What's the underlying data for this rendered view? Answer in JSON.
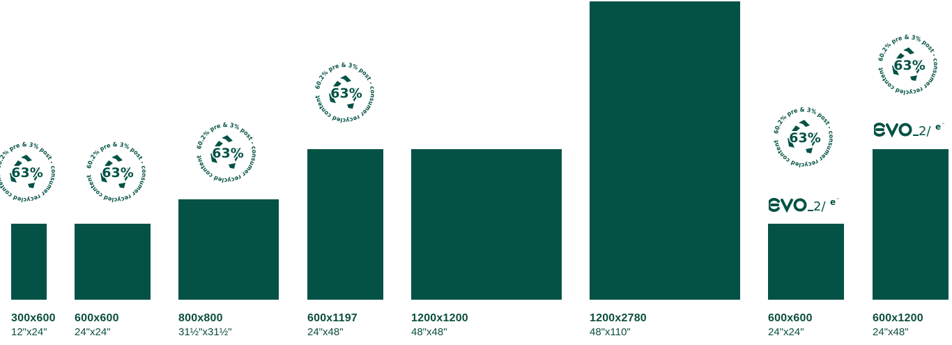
{
  "colors": {
    "tile": "#035245",
    "text": "#0b4d3f"
  },
  "badge": {
    "percent": "63%",
    "arc_text": "60.2% pre & 3% post - consumer recycled content",
    "icon": "recycle-icon"
  },
  "logo": {
    "name": "evo-2-e-logo",
    "text": "evo_2/e"
  },
  "tiles": [
    {
      "mm": "300x600",
      "inch": "12\"x24\""
    },
    {
      "mm": "600x600",
      "inch": "24\"x24\""
    },
    {
      "mm": "800x800",
      "inch": "31½\"x31½\""
    },
    {
      "mm": "600x1197",
      "inch": "24\"x48\""
    },
    {
      "mm": "1200x1200",
      "inch": "48\"x48\""
    },
    {
      "mm": "1200x2780",
      "inch": "48\"x110\""
    },
    {
      "mm": "600x600",
      "inch": "24\"x24\""
    },
    {
      "mm": "600x1200",
      "inch": "24\"x48\""
    }
  ]
}
